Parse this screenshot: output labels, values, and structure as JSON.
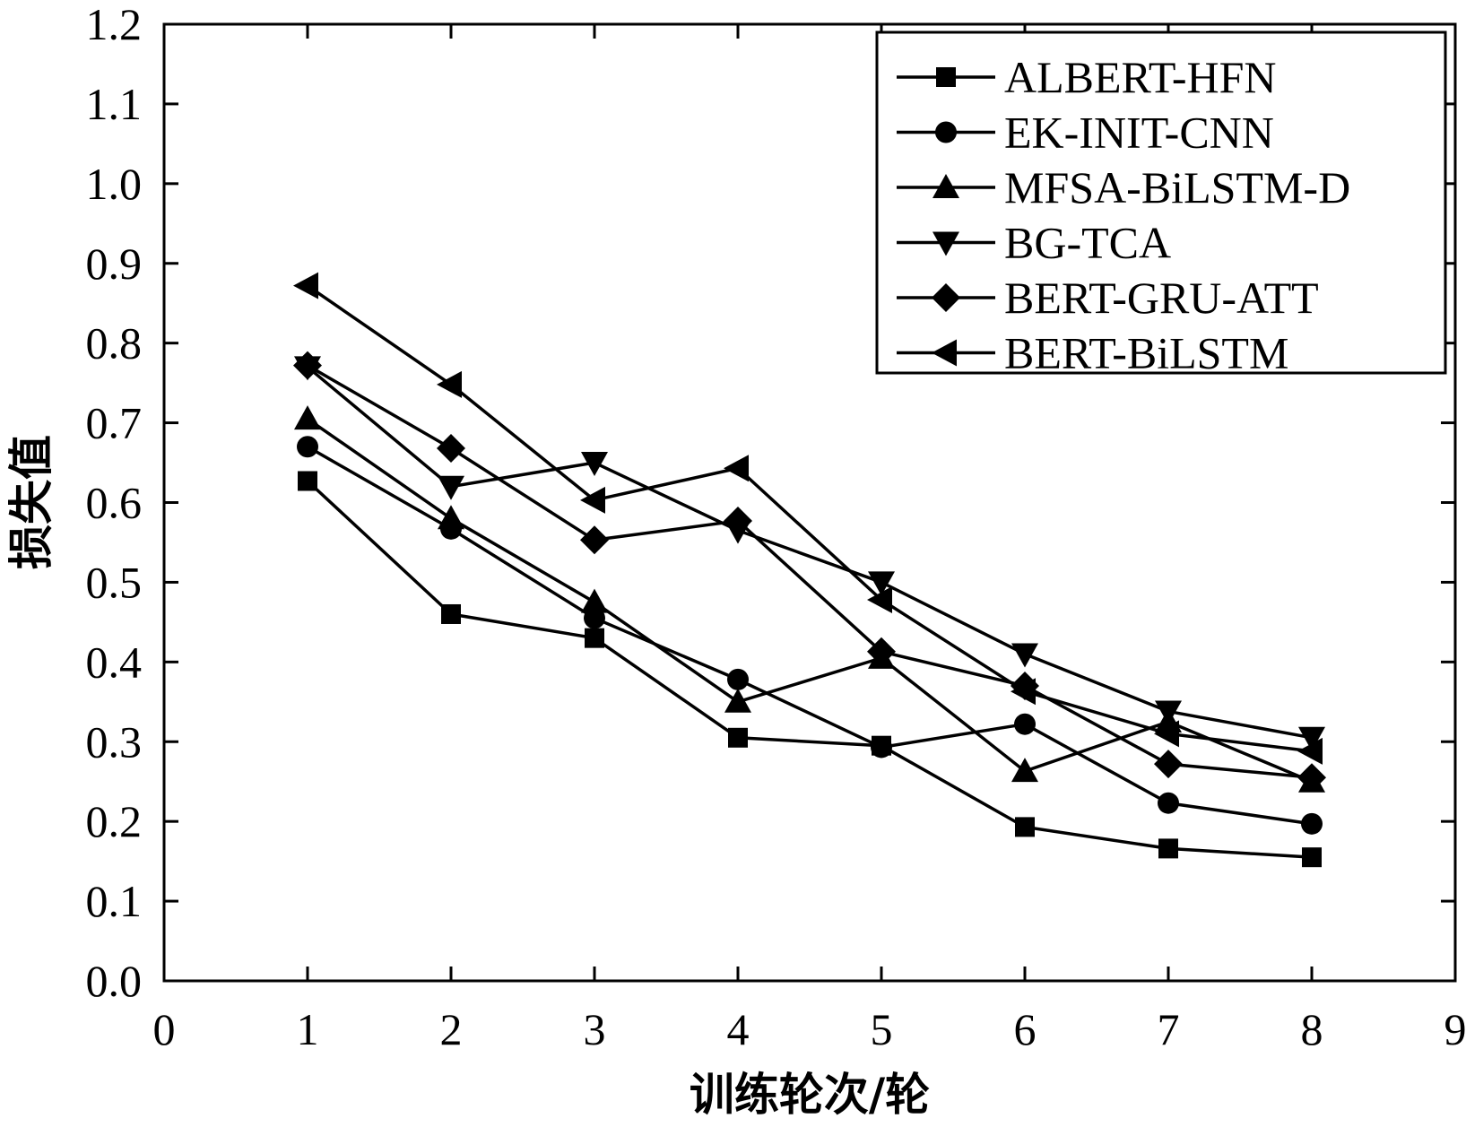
{
  "chart_data": {
    "type": "line",
    "xlabel": "训练轮次/轮",
    "ylabel": "损失值",
    "xlim": [
      0,
      9
    ],
    "ylim": [
      0.0,
      1.2
    ],
    "xticks": [
      "0",
      "1",
      "2",
      "3",
      "4",
      "5",
      "6",
      "7",
      "8",
      "9"
    ],
    "yticks": [
      "0.0",
      "0.1",
      "0.2",
      "0.3",
      "0.4",
      "0.5",
      "0.6",
      "0.7",
      "0.8",
      "0.9",
      "1.0",
      "1.1",
      "1.2"
    ],
    "grid": false,
    "legend_position": "top-right",
    "x": [
      1,
      2,
      3,
      4,
      5,
      6,
      7,
      8
    ],
    "series": [
      {
        "name": "ALBERT-HFN",
        "marker": "square",
        "values": [
          0.627,
          0.46,
          0.43,
          0.305,
          0.295,
          0.193,
          0.166,
          0.155
        ]
      },
      {
        "name": "EK-INIT-CNN",
        "marker": "circle",
        "values": [
          0.67,
          0.567,
          0.455,
          0.378,
          0.293,
          0.322,
          0.223,
          0.197
        ]
      },
      {
        "name": "MFSA-BiLSTM-D",
        "marker": "triangle-up",
        "values": [
          0.705,
          0.58,
          0.475,
          0.35,
          0.405,
          0.263,
          0.325,
          0.25
        ]
      },
      {
        "name": "BG-TCA",
        "marker": "triangle-down",
        "values": [
          0.77,
          0.62,
          0.65,
          0.565,
          0.5,
          0.41,
          0.338,
          0.305
        ]
      },
      {
        "name": "BERT-GRU-ATT",
        "marker": "diamond",
        "values": [
          0.772,
          0.668,
          0.553,
          0.577,
          0.413,
          0.37,
          0.272,
          0.255
        ]
      },
      {
        "name": "BERT-BiLSTM",
        "marker": "triangle-left",
        "values": [
          0.872,
          0.748,
          0.603,
          0.643,
          0.478,
          0.363,
          0.31,
          0.288
        ]
      }
    ]
  }
}
